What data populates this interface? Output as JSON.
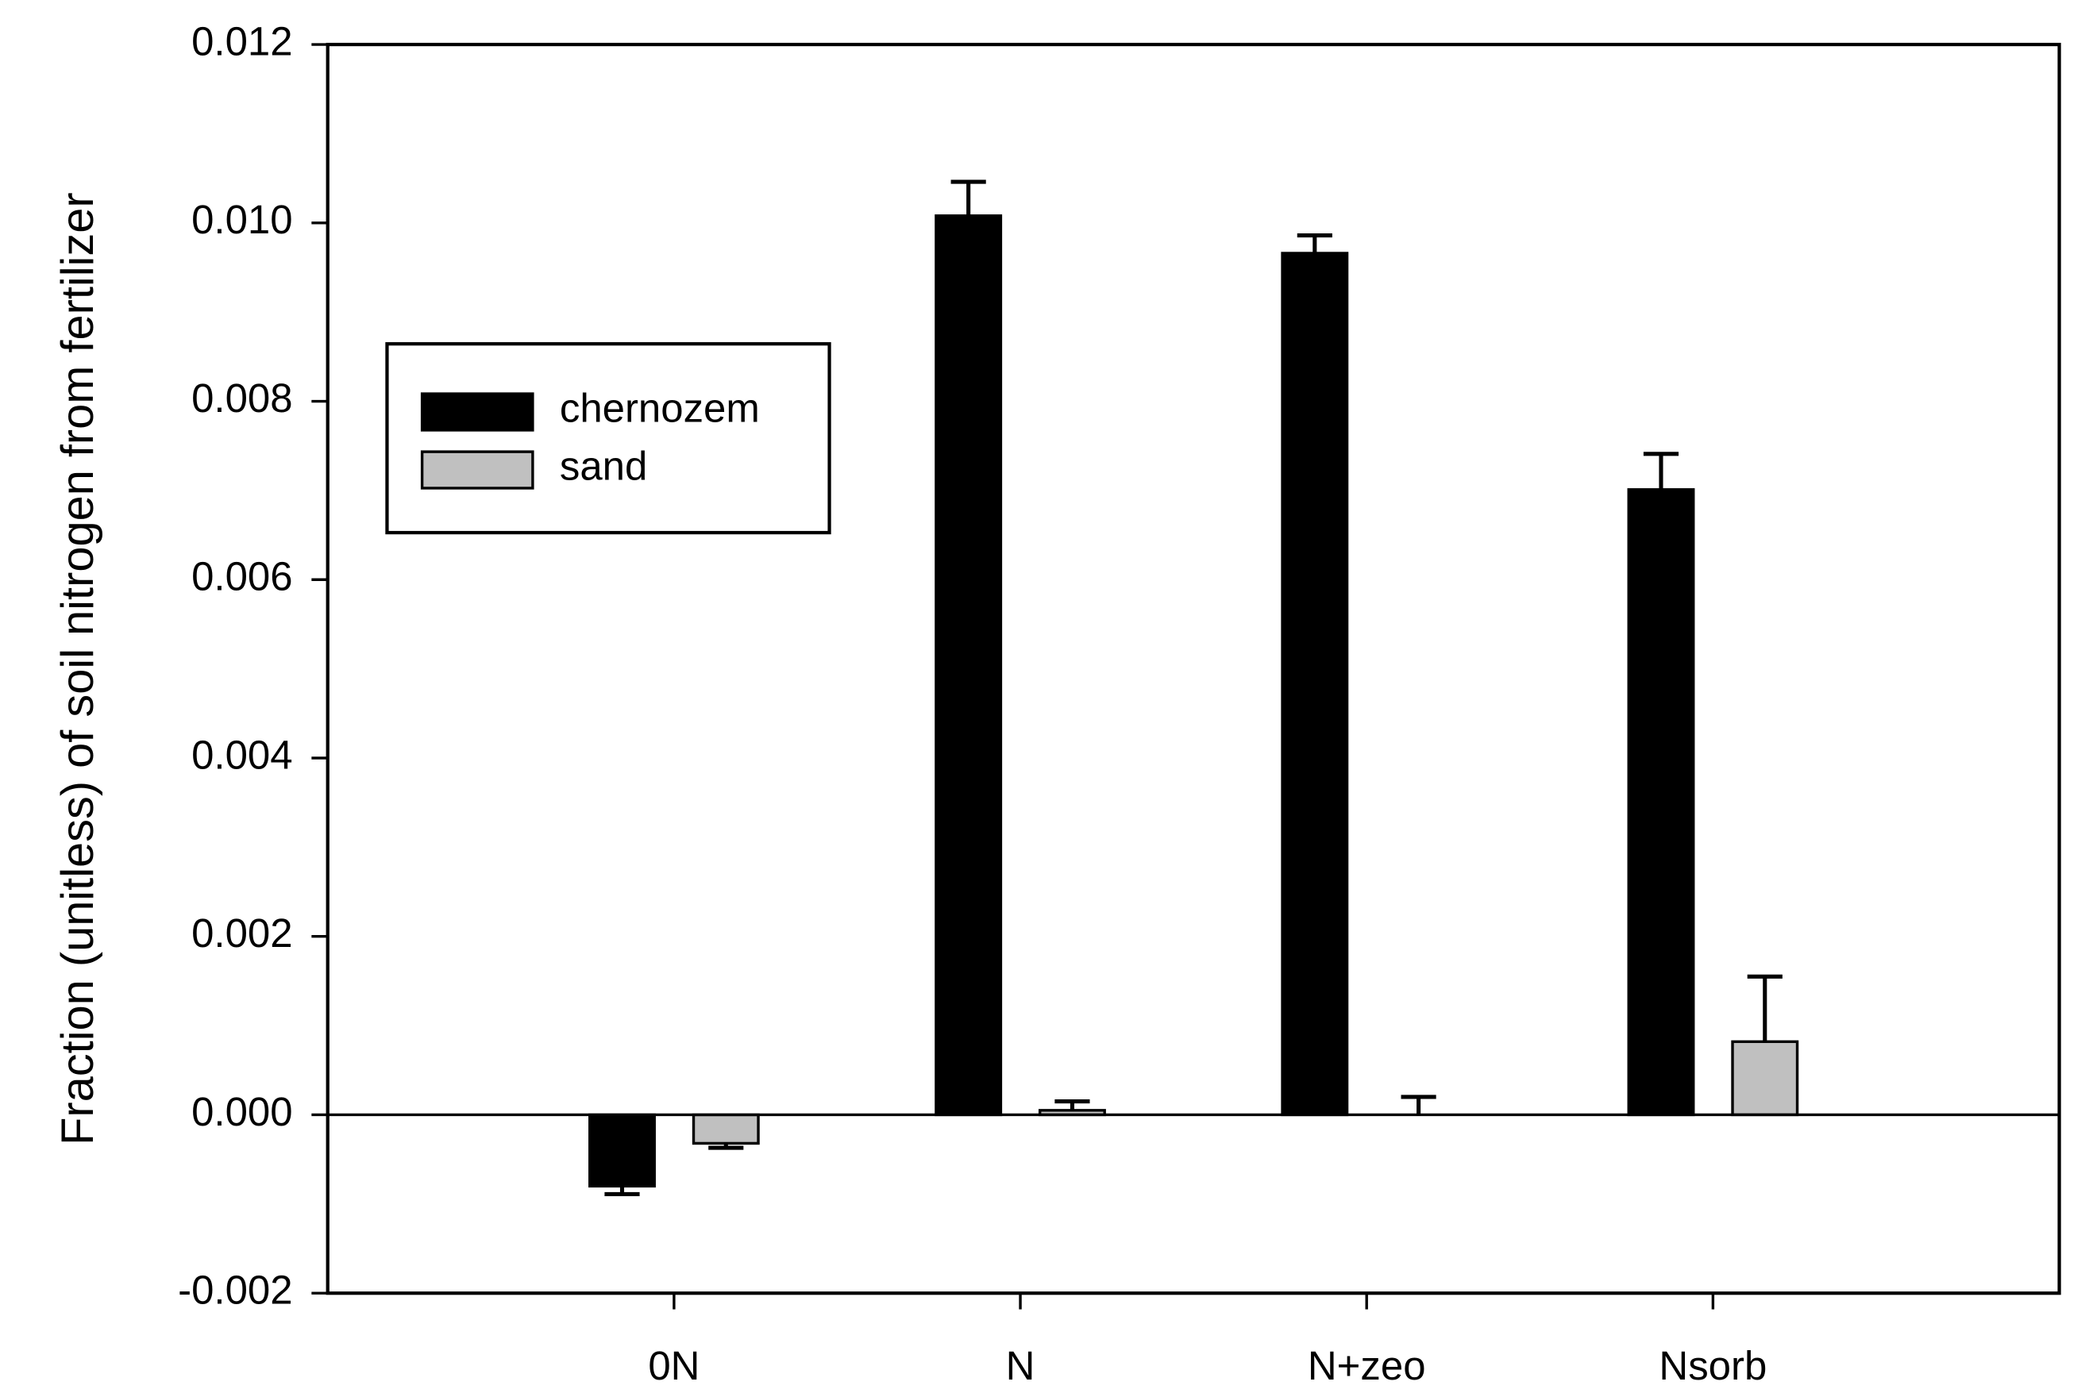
{
  "chart_data": {
    "type": "bar",
    "y_label": "Fraction (unitless) of soil nitrogen from fertilizer",
    "categories": [
      "0N",
      "N",
      "N+zeo",
      "Nsorb"
    ],
    "series": [
      {
        "name": "chernozem",
        "color": "#000000",
        "values": [
          -0.0008,
          0.01008,
          0.00966,
          0.00701
        ],
        "errors": [
          9e-05,
          0.00038,
          0.0002,
          0.0004
        ]
      },
      {
        "name": "sand",
        "color": "#c0c0c0",
        "values": [
          -0.00032,
          5e-05,
          0,
          0.00082
        ],
        "errors": [
          5e-05,
          0.0001,
          0.0002,
          0.00073
        ]
      }
    ],
    "ylim": [
      -0.002,
      0.012
    ],
    "yticks": [
      -0.002,
      {
        "value": 0,
        "label": "0.000"
      },
      0.002,
      0.004,
      0.006,
      0.008,
      {
        "value": 0.01,
        "label": "0.010"
      },
      0.012
    ],
    "legend": "upper left"
  }
}
